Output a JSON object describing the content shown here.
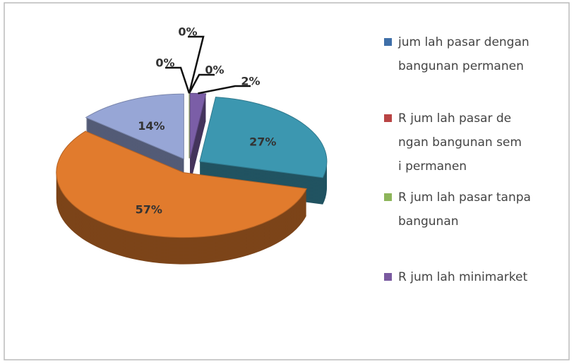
{
  "chart_data": {
    "type": "pie",
    "categories": [
      null,
      null,
      null,
      null,
      null,
      null,
      null
    ],
    "values": [
      2,
      27,
      57,
      14,
      0,
      0,
      0
    ],
    "value_labels": [
      "2%",
      "27%",
      "57%",
      "14%",
      "0%",
      "0%",
      "0%"
    ],
    "colors": [
      "#7b5ea7",
      "#3c97b0",
      "#e17b2d",
      "#97a6d6",
      "#4472c4",
      "#c0504d",
      "#9bbb59"
    ],
    "legend": [
      {
        "name": "jum lah pasar dengan bangunan permanen",
        "color": "#3f6fa8"
      },
      {
        "name": "R jum lah pasar de ngan bangunan sem i permanen",
        "color": "#b94444"
      },
      {
        "name": "R jum lah pasar tanpa bangunan",
        "color": "#8db55a"
      },
      {
        "name": "R jum lah minimarket",
        "color": "#7a5aa0"
      }
    ]
  }
}
